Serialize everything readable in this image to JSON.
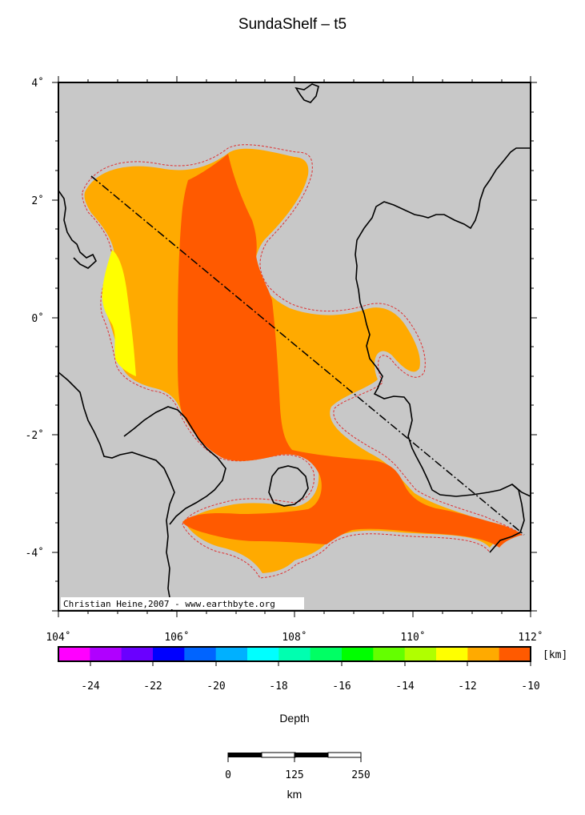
{
  "title": "SundaShelf – t5",
  "credit": "Christian Heine,2007 - www.earthbyte.org",
  "map": {
    "x_ticks": [
      {
        "lon": 104,
        "label": "104˚"
      },
      {
        "lon": 106,
        "label": "106˚"
      },
      {
        "lon": 108,
        "label": "108˚"
      },
      {
        "lon": 110,
        "label": "110˚"
      },
      {
        "lon": 112,
        "label": "112˚"
      }
    ],
    "y_ticks": [
      {
        "lat": 4,
        "label": "4˚"
      },
      {
        "lat": 2,
        "label": "2˚"
      },
      {
        "lat": 0,
        "label": "0˚"
      },
      {
        "lat": -2,
        "label": "-2˚"
      },
      {
        "lat": -4,
        "label": "-4˚"
      }
    ],
    "lon_range": [
      104,
      112
    ],
    "lat_range": [
      -5,
      4
    ],
    "profile_line": {
      "start": [
        104.55,
        2.4
      ],
      "end": [
        111.9,
        -3.7
      ]
    },
    "colors": {
      "land": "#c8c8c8",
      "coast": "#000000",
      "contour": "#e03030",
      "halo": "#c8c8c8"
    }
  },
  "colorbar": {
    "unit": "[km]",
    "label": "Depth",
    "range": [
      -25,
      -10
    ],
    "tick_labels": [
      "-24",
      "-22",
      "-20",
      "-18",
      "-16",
      "-14",
      "-12",
      "-10"
    ],
    "colors": [
      "#ff00ff",
      "#b000ff",
      "#6a00ff",
      "#0000ff",
      "#0064ff",
      "#00b0ff",
      "#00ffff",
      "#00ffb0",
      "#00ff64",
      "#00ff00",
      "#64ff00",
      "#b0ff00",
      "#ffff00",
      "#ffaa00",
      "#ff5a00"
    ]
  },
  "scalebar": {
    "labels": [
      "0",
      "125",
      "250"
    ],
    "unit": "km"
  }
}
